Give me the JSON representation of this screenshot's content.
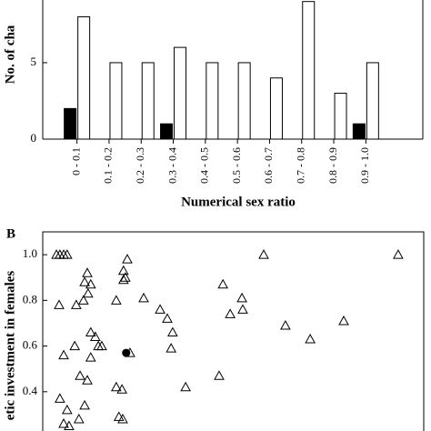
{
  "chart_data": [
    {
      "type": "bar",
      "y_label": "No. of cha",
      "x_label": "Numerical sex ratio",
      "categories": [
        "0 - 0.1",
        "0.1 - 0.2",
        "0.2 - 0.3",
        "0.3 - 0.4",
        "0.4 - 0.5",
        "0.5 - 0.6",
        "0.6 - 0.7",
        "0.7 - 0.8",
        "0.8 - 0.9",
        "0.9 - 1.0"
      ],
      "series": [
        {
          "color": "#000000",
          "values": [
            2,
            0,
            0,
            1,
            0,
            0,
            0,
            0,
            0,
            1
          ]
        },
        {
          "color": "#ffffff",
          "values": [
            8,
            5,
            5,
            6,
            5,
            5,
            4,
            9,
            3,
            5
          ]
        }
      ],
      "ylim": [
        0,
        9.1
      ],
      "yticks": [
        0,
        5
      ]
    },
    {
      "type": "scatter",
      "panel": "B",
      "y_label": "etic investment in females",
      "xlim": [
        0,
        1
      ],
      "ylim": [
        0.23,
        1.1
      ],
      "yticks": [
        {
          "value": 1,
          "label": "1.0"
        },
        {
          "value": 0.8,
          "label": "0.8"
        },
        {
          "value": 0.6,
          "label": "0.6"
        },
        {
          "value": 0.4,
          "label": "0.4"
        }
      ],
      "series": [
        {
          "marker": "triangle",
          "color": "#000000",
          "x": [
            0.036,
            0.045,
            0.055,
            0.064,
            0.222,
            0.117,
            0.11,
            0.126,
            0.212,
            0.217,
            0.212,
            0.119,
            0.107,
            0.193,
            0.265,
            0.043,
            0.088,
            0.308,
            0.327,
            0.341,
            0.337,
            0.473,
            0.523,
            0.492,
            0.525,
            0.58,
            0.933,
            0.637,
            0.79,
            0.702,
            0.055,
            0.084,
            0.146,
            0.126,
            0.138,
            0.155,
            0.126,
            0.229,
            0.098,
            0.117,
            0.193,
            0.208,
            0.375,
            0.463,
            0.045,
            0.064,
            0.11,
            0.055,
            0.069,
            0.095,
            0.2,
            0.21
          ],
          "values": [
            1.0,
            1.0,
            1.0,
            1.0,
            0.98,
            0.92,
            0.88,
            0.87,
            0.93,
            0.9,
            0.89,
            0.83,
            0.8,
            0.8,
            0.81,
            0.78,
            0.78,
            0.76,
            0.72,
            0.66,
            0.59,
            0.87,
            0.81,
            0.74,
            0.76,
            1.0,
            1.0,
            0.69,
            0.71,
            0.63,
            0.56,
            0.6,
            0.6,
            0.66,
            0.64,
            0.6,
            0.55,
            0.57,
            0.47,
            0.45,
            0.42,
            0.41,
            0.42,
            0.47,
            0.37,
            0.32,
            0.34,
            0.26,
            0.25,
            0.28,
            0.29,
            0.28
          ]
        },
        {
          "marker": "circle",
          "color": "#000000",
          "x": [
            0.219
          ],
          "values": [
            0.57
          ]
        }
      ]
    }
  ]
}
